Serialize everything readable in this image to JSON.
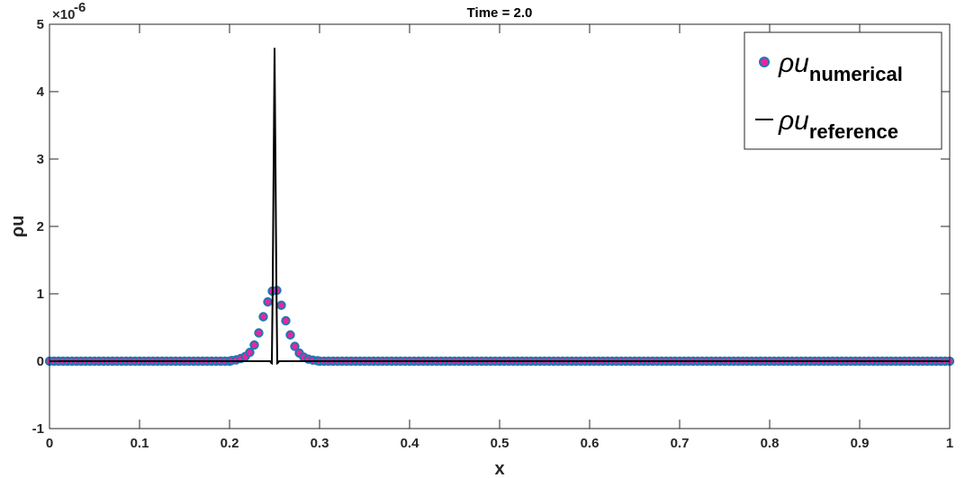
{
  "chart_data": {
    "type": "line",
    "title": "Time = 2.0",
    "xlabel": "x",
    "ylabel": "ρu",
    "xlim": [
      0,
      1
    ],
    "ylim": [
      -1,
      5
    ],
    "y_multiplier_label": "×10",
    "y_multiplier_exponent": "-6",
    "x_ticks": [
      "0",
      "0.1",
      "0.2",
      "0.3",
      "0.4",
      "0.5",
      "0.6",
      "0.7",
      "0.8",
      "0.9",
      "1"
    ],
    "x_tick_values": [
      0,
      0.1,
      0.2,
      0.3,
      0.4,
      0.5,
      0.6,
      0.7,
      0.8,
      0.9,
      1
    ],
    "y_ticks": [
      "-1",
      "0",
      "1",
      "2",
      "3",
      "4",
      "5"
    ],
    "y_tick_values": [
      -1,
      0,
      1,
      2,
      3,
      4,
      5
    ],
    "grid": false,
    "legend_position": "top-right",
    "series": [
      {
        "name_main": "ρu",
        "name_sub": "numerical",
        "style": "markers",
        "fill_color": "#e8259f",
        "edge_color": "#1f77b4",
        "peak_x": 0.2525,
        "peak_y": 1.05,
        "x": [
          0.2025,
          0.2075,
          0.2125,
          0.2175,
          0.2225,
          0.2275,
          0.2325,
          0.2375,
          0.2425,
          0.2475,
          0.2525,
          0.2575,
          0.2625,
          0.2675,
          0.2725,
          0.2775,
          0.2825,
          0.2875,
          0.2925,
          0.2975
        ],
        "y": [
          0.01,
          0.02,
          0.04,
          0.07,
          0.13,
          0.24,
          0.42,
          0.66,
          0.88,
          1.04,
          1.05,
          0.83,
          0.6,
          0.39,
          0.22,
          0.12,
          0.06,
          0.03,
          0.015,
          0.007
        ]
      },
      {
        "name_main": "ρu",
        "name_sub": "reference",
        "style": "line",
        "color": "#000000",
        "x": [
          0,
          0.245,
          0.246,
          0.247,
          0.248,
          0.25,
          0.252,
          0.253,
          0.254,
          0.255,
          0.26,
          1
        ],
        "y": [
          0,
          0,
          -0.02,
          -0.03,
          1.2,
          4.65,
          1.2,
          -0.03,
          -0.02,
          0,
          0,
          0
        ]
      }
    ]
  }
}
